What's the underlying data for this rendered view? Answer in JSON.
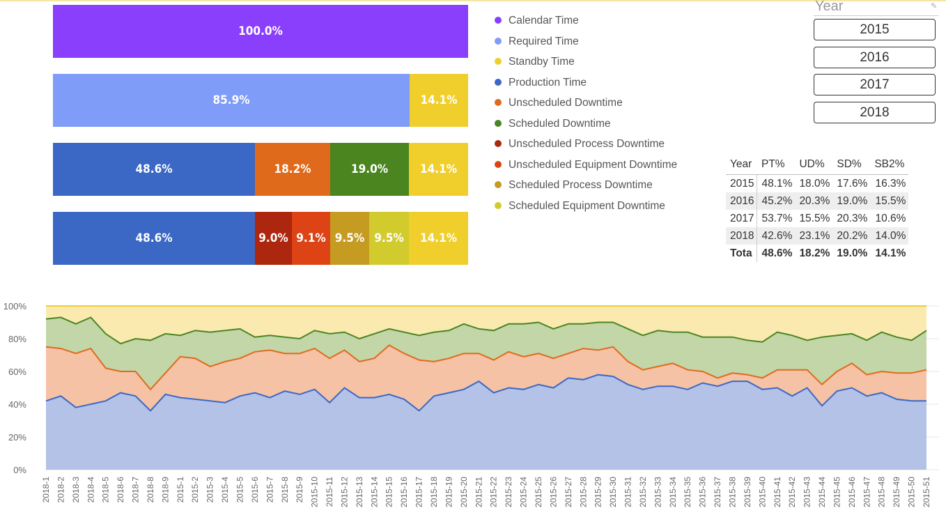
{
  "stacked_bars": [
    {
      "segments": [
        {
          "label": "100.0%",
          "value": 100.0,
          "color": "#8a3ffc"
        }
      ]
    },
    {
      "segments": [
        {
          "label": "85.9%",
          "value": 85.9,
          "color": "#7f9cf8"
        },
        {
          "label": "14.1%",
          "value": 14.1,
          "color": "#f0cf2c"
        }
      ]
    },
    {
      "segments": [
        {
          "label": "48.6%",
          "value": 48.6,
          "color": "#3b68c4"
        },
        {
          "label": "18.2%",
          "value": 18.2,
          "color": "#e06a1c"
        },
        {
          "label": "19.0%",
          "value": 19.0,
          "color": "#4a8520"
        },
        {
          "label": "14.1%",
          "value": 14.1,
          "color": "#f0cf2c"
        }
      ]
    },
    {
      "segments": [
        {
          "label": "48.6%",
          "value": 48.6,
          "color": "#3b68c4"
        },
        {
          "label": "9.0%",
          "value": 9.0,
          "color": "#ad260e"
        },
        {
          "label": "9.1%",
          "value": 9.1,
          "color": "#dd4314"
        },
        {
          "label": "9.5%",
          "value": 9.5,
          "color": "#c59b22"
        },
        {
          "label": "9.5%",
          "value": 9.5,
          "color": "#d2cb2e"
        },
        {
          "label": "14.1%",
          "value": 14.1,
          "color": "#f0cf2c"
        }
      ]
    }
  ],
  "legend": [
    {
      "label": "Calendar Time",
      "color": "#8a3ffc"
    },
    {
      "label": "Required Time",
      "color": "#7f9cf8"
    },
    {
      "label": "Standby Time",
      "color": "#f0cf2c"
    },
    {
      "label": "Production Time",
      "color": "#3b68c4"
    },
    {
      "label": "Unscheduled Downtime",
      "color": "#e06a1c"
    },
    {
      "label": "Scheduled Downtime",
      "color": "#4a8520"
    },
    {
      "label": "Unscheduled Process Downtime",
      "color": "#ad260e"
    },
    {
      "label": "Unscheduled Equipment Downtime",
      "color": "#dd4314"
    },
    {
      "label": "Scheduled Process Downtime",
      "color": "#c59b22"
    },
    {
      "label": "Scheduled Equipment Downtime",
      "color": "#d2cb2e"
    }
  ],
  "slicer": {
    "title": "Year",
    "options": [
      "2015",
      "2016",
      "2017",
      "2018"
    ]
  },
  "table": {
    "headers": [
      "Year",
      "PT%",
      "UD%",
      "SD%",
      "SB2%"
    ],
    "rows": [
      [
        "2015",
        "48.1%",
        "18.0%",
        "17.6%",
        "16.3%"
      ],
      [
        "2016",
        "45.2%",
        "20.3%",
        "19.0%",
        "15.5%"
      ],
      [
        "2017",
        "53.7%",
        "15.5%",
        "20.3%",
        "10.6%"
      ],
      [
        "2018",
        "42.6%",
        "23.1%",
        "20.2%",
        "14.0%"
      ]
    ],
    "total": [
      "Tota",
      "48.6%",
      "18.2%",
      "19.0%",
      "14.1%"
    ]
  },
  "chart_data": {
    "type": "area",
    "stacked": true,
    "ylim": [
      0,
      100
    ],
    "yticks": [
      "0%",
      "20%",
      "40%",
      "60%",
      "80%",
      "100%"
    ],
    "x": [
      "2018-1",
      "2018-2",
      "2018-3",
      "2018-4",
      "2018-5",
      "2018-6",
      "2018-7",
      "2018-8",
      "2018-9",
      "2015-1",
      "2015-2",
      "2015-3",
      "2015-4",
      "2015-5",
      "2015-6",
      "2015-7",
      "2015-8",
      "2015-9",
      "2015-10",
      "2015-11",
      "2015-12",
      "2015-13",
      "2015-14",
      "2015-15",
      "2015-16",
      "2015-17",
      "2015-18",
      "2015-19",
      "2015-20",
      "2015-21",
      "2015-22",
      "2015-23",
      "2015-24",
      "2015-25",
      "2015-26",
      "2015-27",
      "2015-28",
      "2015-29",
      "2015-30",
      "2015-31",
      "2015-32",
      "2015-33",
      "2015-34",
      "2015-35",
      "2015-36",
      "2015-37",
      "2015-38",
      "2015-39",
      "2015-40",
      "2015-41",
      "2015-42",
      "2015-43",
      "2015-44",
      "2015-45",
      "2015-46",
      "2015-47",
      "2015-48",
      "2015-49",
      "2015-50",
      "2015-51"
    ],
    "series": [
      {
        "name": "Production Time",
        "fill": "#b3c2e6",
        "line": "#3b68c4",
        "values": [
          42,
          45,
          38,
          40,
          42,
          47,
          45,
          36,
          46,
          44,
          43,
          42,
          41,
          45,
          47,
          44,
          48,
          46,
          49,
          41,
          50,
          44,
          44,
          46,
          43,
          36,
          45,
          47,
          49,
          54,
          47,
          50,
          49,
          52,
          50,
          56,
          55,
          58,
          57,
          52,
          49,
          51,
          51,
          49,
          53,
          51,
          54,
          54,
          49,
          50,
          45,
          50,
          39,
          48,
          50,
          45,
          47,
          43,
          42,
          42
        ]
      },
      {
        "name": "Unscheduled Downtime",
        "fill": "#f5c2a6",
        "line": "#e06a1c",
        "values": [
          75,
          74,
          71,
          74,
          62,
          60,
          60,
          49,
          59,
          69,
          68,
          63,
          66,
          68,
          72,
          73,
          71,
          71,
          74,
          68,
          73,
          66,
          68,
          76,
          71,
          67,
          66,
          68,
          71,
          71,
          67,
          72,
          69,
          71,
          68,
          71,
          74,
          73,
          75,
          66,
          61,
          63,
          65,
          61,
          60,
          56,
          59,
          58,
          56,
          61,
          61,
          61,
          52,
          60,
          65,
          58,
          60,
          59,
          59,
          61
        ]
      },
      {
        "name": "Scheduled Downtime",
        "fill": "#c2d6a8",
        "line": "#4a8520",
        "values": [
          92,
          93,
          89,
          93,
          83,
          77,
          80,
          79,
          83,
          82,
          85,
          84,
          85,
          86,
          81,
          82,
          81,
          80,
          85,
          83,
          84,
          80,
          83,
          86,
          84,
          82,
          84,
          85,
          89,
          86,
          85,
          89,
          89,
          90,
          86,
          89,
          89,
          90,
          90,
          86,
          82,
          85,
          84,
          84,
          81,
          81,
          81,
          79,
          78,
          84,
          82,
          79,
          81,
          82,
          83,
          79,
          84,
          81,
          79,
          85
        ]
      },
      {
        "name": "Standby Time",
        "fill": "#faeab0",
        "line": "#f0cf2c",
        "values": [
          100,
          100,
          100,
          100,
          100,
          100,
          100,
          100,
          100,
          100,
          100,
          100,
          100,
          100,
          100,
          100,
          100,
          100,
          100,
          100,
          100,
          100,
          100,
          100,
          100,
          100,
          100,
          100,
          100,
          100,
          100,
          100,
          100,
          100,
          100,
          100,
          100,
          100,
          100,
          100,
          100,
          100,
          100,
          100,
          100,
          100,
          100,
          100,
          100,
          100,
          100,
          100,
          100,
          100,
          100,
          100,
          100,
          100,
          100,
          100
        ]
      }
    ]
  }
}
